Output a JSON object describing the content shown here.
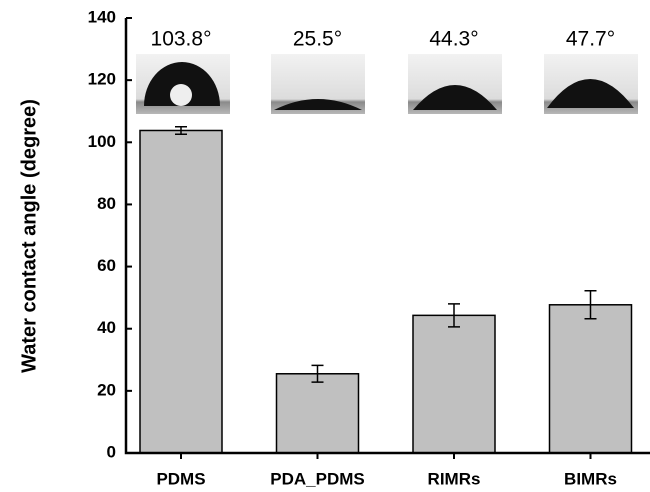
{
  "chart_data": {
    "type": "bar",
    "ylabel": "Water contact angle (degree)",
    "categories": [
      "PDMS",
      "PDA_PDMS",
      "RIMRs",
      "BIMRs"
    ],
    "values": [
      103.8,
      25.5,
      44.3,
      47.7
    ],
    "value_labels": [
      "103.8°",
      "25.5°",
      "44.3°",
      "47.7°"
    ],
    "errors": [
      1.2,
      2.7,
      3.7,
      4.5
    ],
    "color": "#c0c0c0",
    "ylim": [
      0,
      140
    ],
    "yticks": [
      0,
      20,
      40,
      60,
      80,
      100,
      120,
      140
    ]
  }
}
